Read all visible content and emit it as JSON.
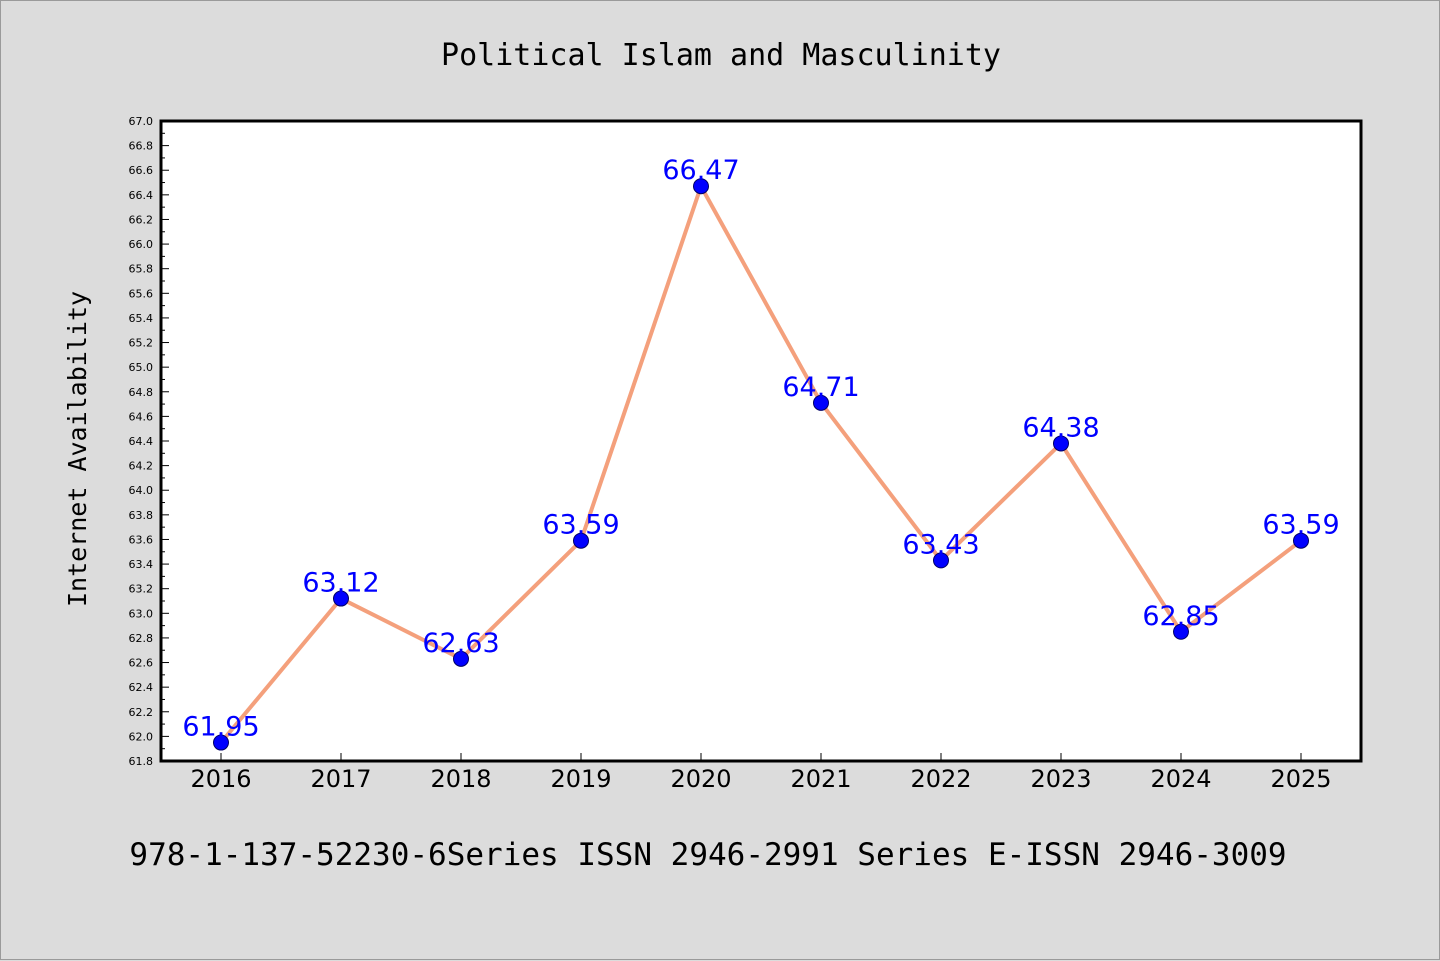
{
  "chart_data": {
    "type": "line",
    "title": "Political Islam and Masculinity",
    "ylabel": "Internet Availability",
    "xlabel": "",
    "footer": "978-1-137-52230-6Series ISSN 2946-2991 Series E-ISSN 2946-3009",
    "categories": [
      "2016",
      "2017",
      "2018",
      "2019",
      "2020",
      "2021",
      "2022",
      "2023",
      "2024",
      "2025"
    ],
    "values": [
      61.95,
      63.12,
      62.63,
      63.59,
      66.47,
      64.71,
      63.43,
      64.38,
      62.85,
      63.59
    ],
    "data_labels": [
      "61.95",
      "63.12",
      "62.63",
      "63.59",
      "66.47",
      "64.71",
      "63.43",
      "64.38",
      "62.85",
      "63.59"
    ],
    "ylim": [
      61.8,
      67.0
    ],
    "yticks": [
      "61.8",
      "62.0",
      "62.2",
      "62.4",
      "62.6",
      "62.8",
      "63.0",
      "63.2",
      "63.4",
      "63.6",
      "63.8",
      "64.0",
      "64.2",
      "64.4",
      "64.6",
      "64.8",
      "65.0",
      "65.2",
      "65.4",
      "65.6",
      "65.8",
      "66.0",
      "66.2",
      "66.4",
      "66.6",
      "66.8",
      "67.0"
    ],
    "grid": false,
    "legend": "none",
    "colors": {
      "line": "#f4a07c",
      "marker": "#0000ff",
      "marker_edge": "#000066",
      "label": "#0000ff",
      "plot_bg": "#ffffff",
      "figure_bg": "#dcdcdc"
    }
  }
}
